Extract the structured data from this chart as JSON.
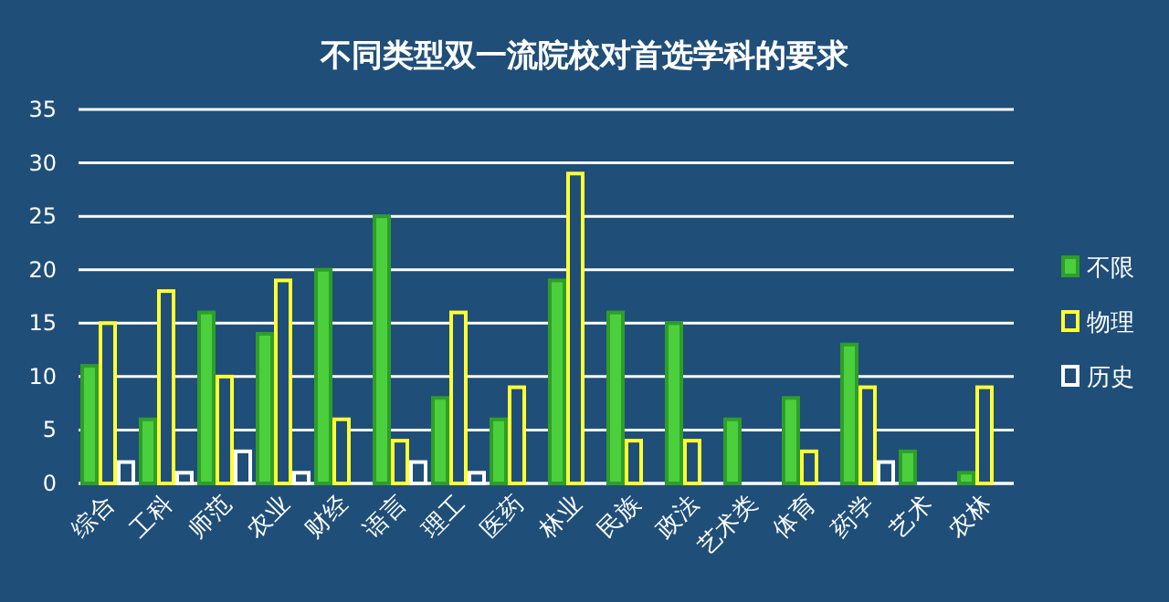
{
  "chart_data": {
    "type": "bar",
    "title": "不同类型双一流院校对首选学科的要求",
    "categories": [
      "综合",
      "工科",
      "师范",
      "农业",
      "财经",
      "语言",
      "理工",
      "医药",
      "林业",
      "民族",
      "政法",
      "艺术类",
      "体育",
      "药学",
      "艺术",
      "农林"
    ],
    "series": [
      {
        "name": "不限",
        "color": "#4ccf3c",
        "values": [
          11,
          6,
          16,
          14,
          20,
          25,
          8,
          6,
          19,
          16,
          15,
          6,
          8,
          13,
          3,
          1
        ]
      },
      {
        "name": "物理",
        "color": "#ffff33",
        "values": [
          15,
          18,
          10,
          19,
          6,
          4,
          16,
          9,
          29,
          4,
          4,
          null,
          3,
          9,
          null,
          9
        ]
      },
      {
        "name": "历史",
        "color": "#ffffff",
        "values": [
          2,
          1,
          3,
          1,
          null,
          2,
          1,
          null,
          null,
          null,
          null,
          null,
          null,
          2,
          null,
          null
        ]
      }
    ],
    "ylim": [
      0,
      35
    ],
    "yticks": [
      0,
      5,
      10,
      15,
      20,
      25,
      30,
      35
    ],
    "grid": "y",
    "legend": "right"
  }
}
